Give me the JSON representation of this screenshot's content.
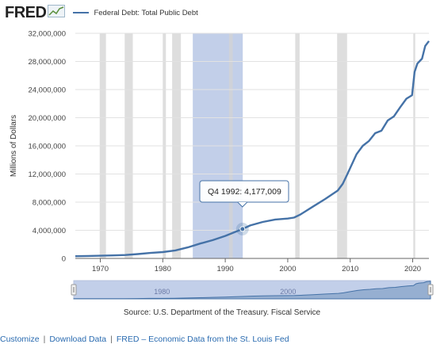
{
  "header": {
    "logo_text": "FRED",
    "logo_icon": "line-chart-icon",
    "legend_label": "Federal Debt: Total Public Debt",
    "accent_color": "#4572a7"
  },
  "chart_data": {
    "type": "line",
    "title": "",
    "ylabel": "Millions of Dollars",
    "xlabel": "",
    "xlim": [
      1966,
      2022.6
    ],
    "ylim": [
      0,
      32000000
    ],
    "y_ticks": [
      0,
      4000000,
      8000000,
      12000000,
      16000000,
      20000000,
      24000000,
      28000000,
      32000000
    ],
    "y_tick_labels": [
      "0",
      "4,000,000",
      "8,000,000",
      "12,000,000",
      "16,000,000",
      "20,000,000",
      "24,000,000",
      "28,000,000",
      "32,000,000"
    ],
    "x_ticks": [
      1970,
      1980,
      1990,
      2000,
      2010,
      2020
    ],
    "x_tick_labels": [
      "1970",
      "1980",
      "1990",
      "2000",
      "2010",
      "2020"
    ],
    "grid": true,
    "recessions": [
      [
        1969.9,
        1970.9
      ],
      [
        1973.9,
        1975.2
      ],
      [
        1980.0,
        1980.5
      ],
      [
        1981.5,
        1982.9
      ],
      [
        1990.6,
        1991.2
      ],
      [
        2001.2,
        2001.9
      ],
      [
        2007.9,
        2009.5
      ],
      [
        2020.1,
        2020.4
      ]
    ],
    "selection_band": [
      1984.8,
      1992.8
    ],
    "series": [
      {
        "name": "Federal Debt: Total Public Debt",
        "color": "#4572a7",
        "x": [
          1966,
          1968,
          1970,
          1972,
          1974,
          1976,
          1978,
          1980,
          1982,
          1984,
          1986,
          1988,
          1990,
          1992.75,
          1994,
          1996,
          1998,
          2000,
          2001,
          2002,
          2004,
          2006,
          2008,
          2008.8,
          2009.5,
          2011,
          2012,
          2013,
          2014,
          2015,
          2016,
          2017,
          2018,
          2019,
          2019.9,
          2020.3,
          2020.75,
          2021.5,
          2022,
          2022.6
        ],
        "y": [
          320000,
          350000,
          380000,
          430000,
          480000,
          620000,
          780000,
          900000,
          1140000,
          1570000,
          2120000,
          2600000,
          3200000,
          4177009,
          4690000,
          5180000,
          5530000,
          5670000,
          5800000,
          6230000,
          7350000,
          8450000,
          9650000,
          10600000,
          11900000,
          14800000,
          16000000,
          16700000,
          17800000,
          18150000,
          19600000,
          20200000,
          21500000,
          22700000,
          23200000,
          26500000,
          27700000,
          28400000,
          30200000,
          30900000
        ]
      }
    ],
    "tooltip": {
      "label": "Q4 1992: 4,177,009",
      "x": 1992.75,
      "y": 4177009
    },
    "navigator_labels": [
      "1980",
      "2000"
    ]
  },
  "source": "Source: U.S. Department of the Treasury. Fiscal Service",
  "footer": {
    "links": [
      "Customize",
      "Download Data",
      "FRED – Economic Data from the St. Louis Fed"
    ],
    "separator": "|"
  }
}
